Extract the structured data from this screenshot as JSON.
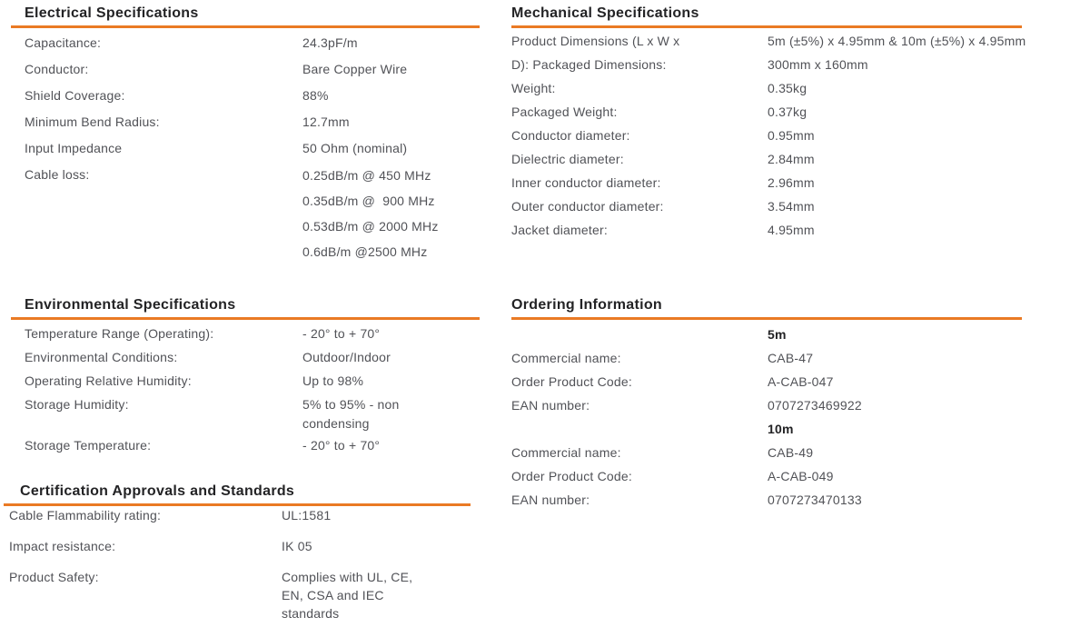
{
  "accent_color": "#EA7A24",
  "heading_color": "#232325",
  "body_text_color": "#515257",
  "sections": [
    {
      "id": "electrical",
      "title": "Electrical Specifications",
      "rows": [
        {
          "label": "Capacitance:",
          "value": "24.3pF/m"
        },
        {
          "label": "Conductor:",
          "value": "Bare Copper Wire"
        },
        {
          "label": "Shield Coverage:",
          "value": "88%"
        },
        {
          "label": "Minimum Bend Radius:",
          "value": "12.7mm"
        },
        {
          "label": "Input Impedance",
          "value": "50 Ohm (nominal)"
        },
        {
          "label": "Cable loss:",
          "value": "0.25dB/m @ 450 MHz\n0.35dB/m @  900 MHz\n0.53dB/m @ 2000 MHz\n0.6dB/m @2500 MHz"
        }
      ]
    },
    {
      "id": "mechanical",
      "title": "Mechanical Specifications",
      "rows": [
        {
          "label": "Product Dimensions (L x W x\nD): Packaged Dimensions:",
          "value": "5m (±5%) x 4.95mm & 10m (±5%) x 4.95mm\n300mm x 160mm"
        },
        {
          "label": "Weight:",
          "value": "0.35kg"
        },
        {
          "label": "Packaged Weight:",
          "value": "0.37kg"
        },
        {
          "label": "Conductor diameter:",
          "value": "0.95mm"
        },
        {
          "label": "Dielectric diameter:",
          "value": "2.84mm"
        },
        {
          "label": "Inner conductor diameter:",
          "value": "2.96mm"
        },
        {
          "label": "Outer conductor diameter:",
          "value": "3.54mm"
        },
        {
          "label": "Jacket diameter:",
          "value": "4.95mm"
        }
      ]
    },
    {
      "id": "environmental",
      "title": "Environmental Specifications",
      "rows": [
        {
          "label": "Temperature Range (Operating):",
          "value": "- 20° to + 70°"
        },
        {
          "label": "Environmental Conditions:",
          "value": "Outdoor/Indoor"
        },
        {
          "label": "Operating Relative Humidity:",
          "value": "Up to 98%"
        },
        {
          "label": "Storage Humidity:",
          "value": "5% to 95% - non\ncondensing"
        },
        {
          "label": "Storage Temperature:",
          "value": "- 20° to + 70°"
        }
      ]
    },
    {
      "id": "ordering",
      "title": "Ordering Information",
      "rows": [
        {
          "label": "",
          "value": "5m",
          "bold": true
        },
        {
          "label": "Commercial name:",
          "value": "CAB-47"
        },
        {
          "label": "Order Product Code:",
          "value": "A-CAB-047"
        },
        {
          "label": "EAN number:",
          "value": "0707273469922"
        },
        {
          "label": "",
          "value": "10m",
          "bold": true
        },
        {
          "label": "Commercial name:",
          "value": "CAB-49"
        },
        {
          "label": "Order Product Code:",
          "value": "A-CAB-049"
        },
        {
          "label": "EAN number:",
          "value": "0707273470133"
        }
      ]
    },
    {
      "id": "certification",
      "title": "Certification Approvals and Standards",
      "rows": [
        {
          "label": "Cable Flammability rating:",
          "value": "UL:1581"
        },
        {
          "label": "Impact resistance:",
          "value": "IK 05"
        },
        {
          "label": "Product Safety:",
          "value": "Complies with UL, CE,\nEN, CSA and IEC\nstandards"
        }
      ]
    }
  ]
}
